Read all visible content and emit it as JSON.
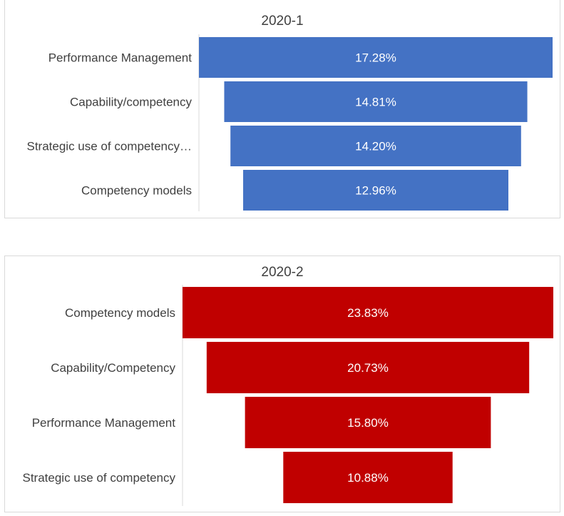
{
  "chart_data": [
    {
      "type": "bar",
      "subtype": "funnel",
      "title": "2020-1",
      "categories": [
        "Performance Management",
        "Capability/competency",
        "Strategic use of competency…",
        "Competency models"
      ],
      "values": [
        17.28,
        14.81,
        14.2,
        12.96
      ],
      "value_labels": [
        "17.28%",
        "14.81%",
        "14.20%",
        "12.96%"
      ],
      "color": "#4472c4",
      "grid": false,
      "legend": "none"
    },
    {
      "type": "bar",
      "subtype": "funnel",
      "title": "2020-2",
      "categories": [
        "Competency models",
        "Capability/Competency",
        "Performance Management",
        "Strategic use of competency"
      ],
      "values": [
        23.83,
        20.73,
        15.8,
        10.88
      ],
      "value_labels": [
        "23.83%",
        "20.73%",
        "15.80%",
        "10.88%"
      ],
      "color": "#c00000",
      "grid": false,
      "legend": "none"
    }
  ]
}
